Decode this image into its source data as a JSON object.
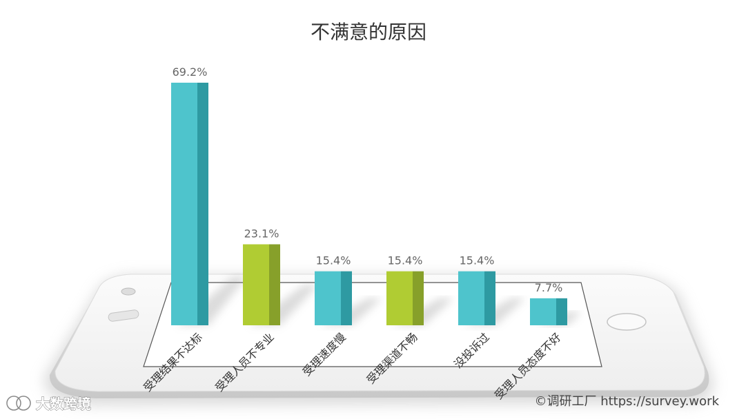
{
  "chart_data": {
    "type": "bar",
    "title": "不满意的原因",
    "categories": [
      "受理结果不达标",
      "受理人员不专业",
      "受理速度慢",
      "受理渠道不畅",
      "没投诉过",
      "受理人员态度不好"
    ],
    "values": [
      69.2,
      23.1,
      15.4,
      15.4,
      15.4,
      7.7
    ],
    "data_labels": [
      "69.2%",
      "23.1%",
      "15.4%",
      "15.4%",
      "15.4%",
      "7.7%"
    ],
    "bar_colors": [
      "#4ec4cc",
      "#b0cc33",
      "#4ec4cc",
      "#b0cc33",
      "#4ec4cc",
      "#4ec4cc"
    ],
    "bar_side_colors": [
      "#2e9aa2",
      "#87a02a",
      "#2e9aa2",
      "#87a02a",
      "#2e9aa2",
      "#2e9aa2"
    ],
    "ylim": [
      0,
      69.2
    ],
    "grid": false,
    "legend": "none"
  },
  "credit": "©调研工厂 https://survey.work",
  "watermark": "大数跨境"
}
